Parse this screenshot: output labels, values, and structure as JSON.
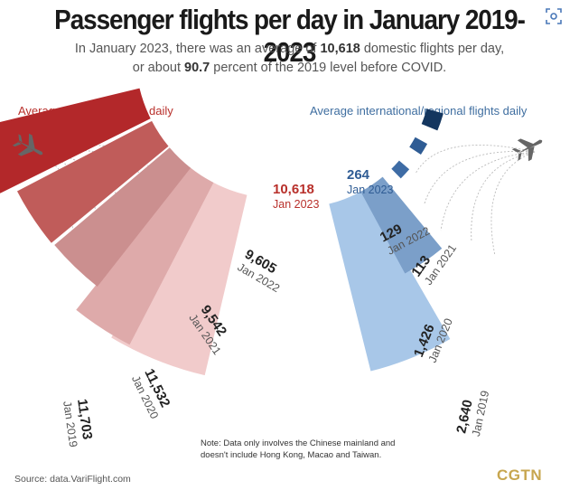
{
  "header": {
    "title": "Passenger flights per day in January 2019-2023",
    "subtitle_line1_a": "In January 2023, there was an average of ",
    "subtitle_line1_b": "10,618",
    "subtitle_line1_c": " domestic flights per day,",
    "subtitle_line2_a": "or about ",
    "subtitle_line2_b": "90.7",
    "subtitle_line2_c": " percent of the 2019 level before COVID."
  },
  "footer": {
    "note_line1": "Note: Data only involves the Chinese mainland and",
    "note_line2": "doesn't include Hong Kong, Macao and Taiwan.",
    "source": "Source: data.VariFlight.com",
    "logo": "CGTN"
  },
  "colors": {
    "domestic_accent": "#b8302b",
    "international_accent": "#3f6ea0"
  },
  "icons": {
    "left_plane": "airplane-icon",
    "right_plane": "airplane-icon",
    "corner": "lens-scan-icon"
  },
  "chart_data": [
    {
      "type": "bar",
      "title": "Average domestic flights daily",
      "categories": [
        "Jan 2019",
        "Jan 2020",
        "Jan 2021",
        "Jan 2022",
        "Jan 2023"
      ],
      "values": [
        11703,
        11532,
        9542,
        9605,
        10618
      ],
      "value_labels": [
        "11,703",
        "11,532",
        "9,542",
        "9,605",
        "10,618"
      ],
      "colors": [
        "#f1cbcb",
        "#deaaaa",
        "#cb8f8f",
        "#c05c5a",
        "#b3282a"
      ]
    },
    {
      "type": "bar",
      "title": "Average international/regional flights daily",
      "categories": [
        "Jan 2019",
        "Jan 2020",
        "Jan 2021",
        "Jan 2022",
        "Jan 2023"
      ],
      "values": [
        2640,
        1426,
        113,
        129,
        264
      ],
      "value_labels": [
        "2,640",
        "1,426",
        "113",
        "129",
        "264"
      ],
      "colors": [
        "#a8c7e8",
        "#7b9fc9",
        "#3e6ca5",
        "#2f5c94",
        "#14365f"
      ]
    }
  ]
}
